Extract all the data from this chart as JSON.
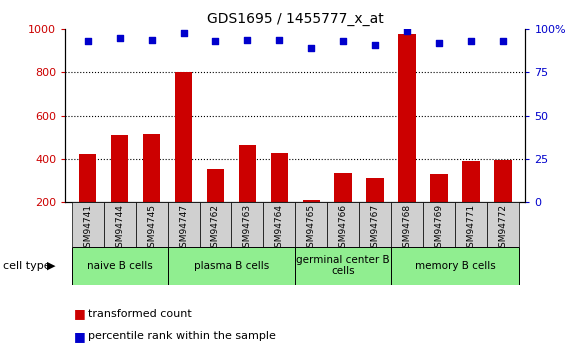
{
  "title": "GDS1695 / 1455777_x_at",
  "samples": [
    "GSM94741",
    "GSM94744",
    "GSM94745",
    "GSM94747",
    "GSM94762",
    "GSM94763",
    "GSM94764",
    "GSM94765",
    "GSM94766",
    "GSM94767",
    "GSM94768",
    "GSM94769",
    "GSM94771",
    "GSM94772"
  ],
  "transformed_count": [
    420,
    510,
    515,
    800,
    350,
    465,
    425,
    210,
    335,
    310,
    980,
    330,
    390,
    395
  ],
  "percentile_rank": [
    93,
    95,
    94,
    98,
    93,
    94,
    94,
    89,
    93,
    91,
    99,
    92,
    93,
    93
  ],
  "groups": [
    {
      "label": "naive B cells",
      "indices": [
        0,
        1,
        2
      ],
      "color": "#90ee90"
    },
    {
      "label": "plasma B cells",
      "indices": [
        3,
        4,
        5,
        6
      ],
      "color": "#90ee90"
    },
    {
      "label": "germinal center B\ncells",
      "indices": [
        7,
        8,
        9
      ],
      "color": "#90ee90"
    },
    {
      "label": "memory B cells",
      "indices": [
        10,
        11,
        12,
        13
      ],
      "color": "#90ee90"
    }
  ],
  "cell_type_label": "cell type",
  "bar_color": "#cc0000",
  "dot_color": "#0000cc",
  "ylim_left": [
    200,
    1000
  ],
  "ylim_right": [
    0,
    100
  ],
  "yticks_left": [
    200,
    400,
    600,
    800,
    1000
  ],
  "yticks_right": [
    0,
    25,
    50,
    75,
    100
  ],
  "yticklabels_right": [
    "0",
    "25",
    "50",
    "75",
    "100%"
  ],
  "grid_values": [
    400,
    600,
    800
  ],
  "legend_items": [
    "transformed count",
    "percentile rank within the sample"
  ],
  "bar_width": 0.55,
  "tick_color_left": "#cc0000",
  "tick_color_right": "#0000cc",
  "xticklabel_bg": "#d0d0d0",
  "separator_indices": [
    2.5,
    6.5,
    9.5
  ]
}
